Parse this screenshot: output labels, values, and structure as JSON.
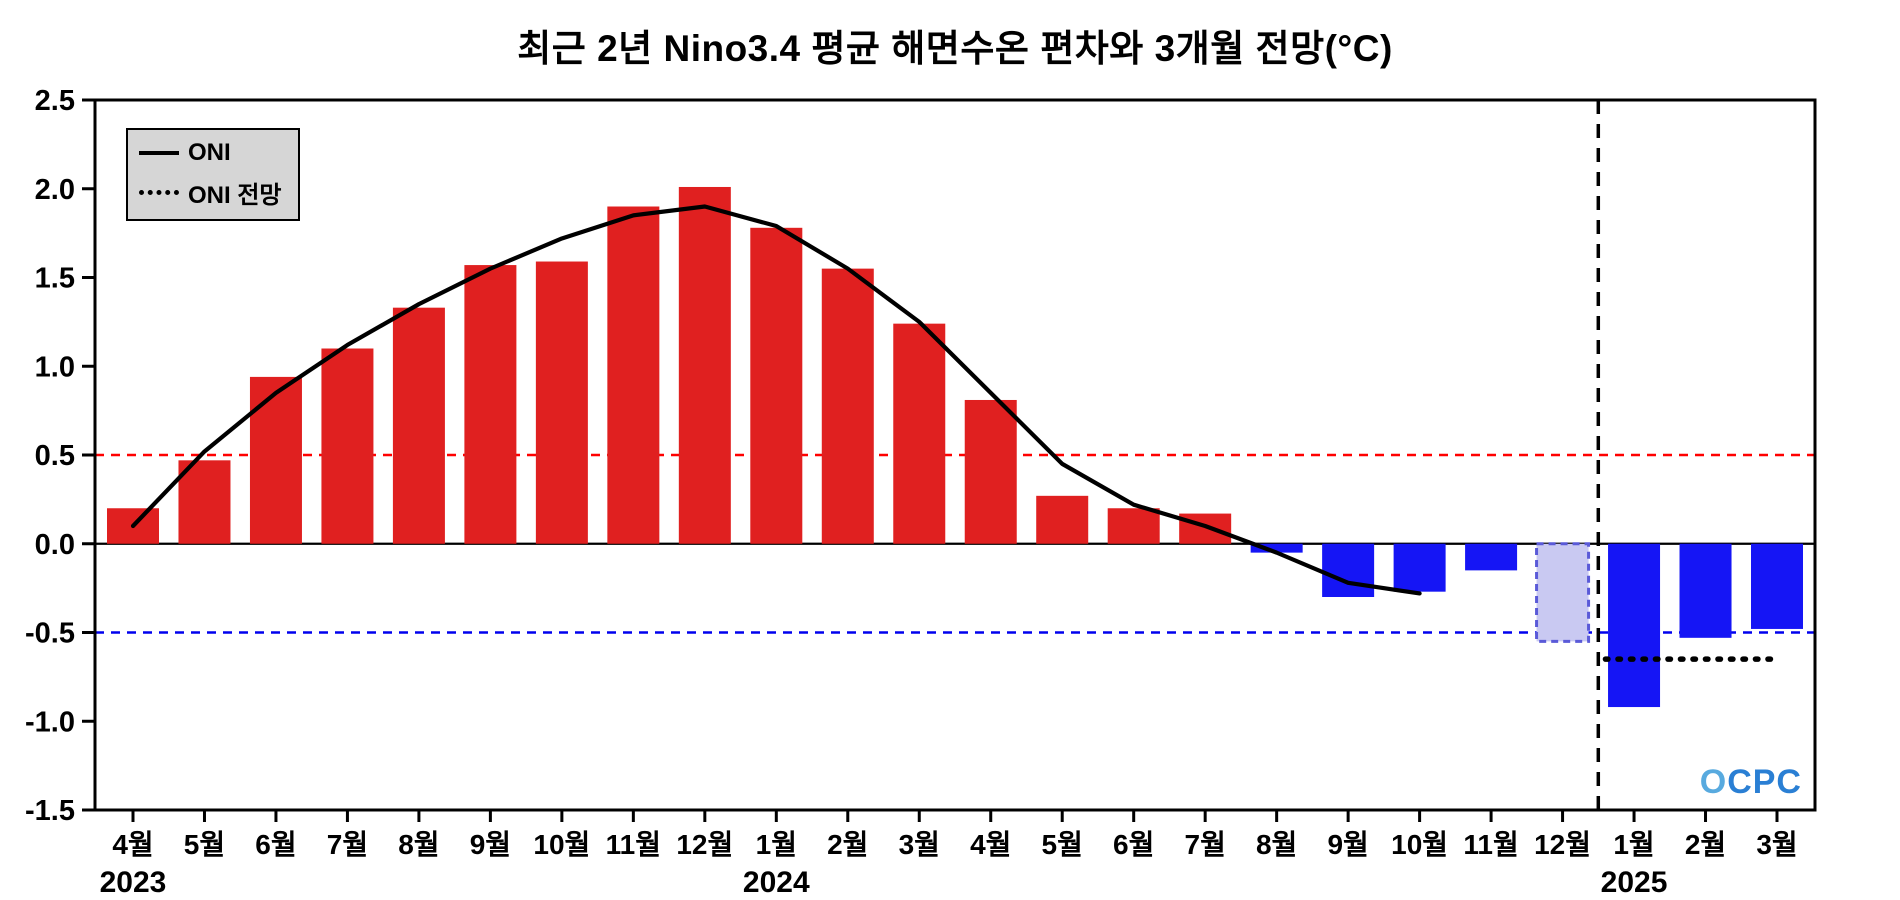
{
  "title": "최근 2년 Nino3.4 평균 해면수온 편차와 3개월 전망(°C)",
  "legend": {
    "oni": "ONI",
    "oni_forecast": "ONI 전망"
  },
  "watermark": "OCPC",
  "colors": {
    "positive_bar": "#e02020",
    "negative_bar": "#1515f5",
    "forecast_bar_fill": "#c9c9f2",
    "forecast_bar_border": "#5a5ad8",
    "oni_line": "#000000",
    "forecast_line": "#000000",
    "elnino_threshold": "#ff0000",
    "lanina_threshold": "#0000ee",
    "divider": "#000000"
  },
  "chart_data": {
    "type": "bar",
    "title": "최근 2년 Nino3.4 평균 해면수온 편차와 3개월 전망(°C)",
    "xlabel": "",
    "ylabel": "",
    "ylim": [
      -1.5,
      2.5
    ],
    "ytick_step": 0.5,
    "grid": false,
    "legend_position": "top-left",
    "categories": [
      "4월",
      "5월",
      "6월",
      "7월",
      "8월",
      "9월",
      "10월",
      "11월",
      "12월",
      "1월",
      "2월",
      "3월",
      "4월",
      "5월",
      "6월",
      "7월",
      "8월",
      "9월",
      "10월",
      "11월",
      "12월",
      "1월",
      "2월",
      "3월"
    ],
    "year_labels": [
      {
        "index": 0,
        "label": "2023"
      },
      {
        "index": 9,
        "label": "2024"
      },
      {
        "index": 21,
        "label": "2025"
      }
    ],
    "bars": {
      "name": "Nino3.4 평균 해면수온 편차",
      "forecast_index": 20,
      "values": [
        0.2,
        0.47,
        0.94,
        1.1,
        1.33,
        1.57,
        1.59,
        1.9,
        2.01,
        1.78,
        1.55,
        1.24,
        0.81,
        0.27,
        0.2,
        0.17,
        -0.05,
        -0.3,
        -0.27,
        -0.15,
        -0.55,
        -0.92,
        -0.53,
        -0.48
      ]
    },
    "oni_line": {
      "name": "ONI",
      "x": [
        0,
        1,
        2,
        3,
        4,
        5,
        6,
        7,
        8,
        9,
        10,
        11,
        12,
        13,
        14,
        15,
        16,
        17,
        18
      ],
      "values": [
        0.1,
        0.52,
        0.85,
        1.12,
        1.35,
        1.55,
        1.72,
        1.85,
        1.9,
        1.79,
        1.55,
        1.25,
        0.85,
        0.45,
        0.22,
        0.1,
        -0.05,
        -0.22,
        -0.28
      ]
    },
    "forecast_line": {
      "name": "ONI 전망",
      "x": [
        20.6,
        21,
        22,
        23
      ],
      "values": [
        -0.65,
        -0.65,
        -0.65,
        -0.65
      ]
    },
    "reference_lines": [
      {
        "value": 0.5,
        "style": "dashed",
        "color_key": "elnino_threshold"
      },
      {
        "value": -0.5,
        "style": "dashed",
        "color_key": "lanina_threshold"
      },
      {
        "value": 0.0,
        "style": "solid",
        "color_key": "oni_line"
      }
    ],
    "forecast_divider_index": 20.5
  }
}
